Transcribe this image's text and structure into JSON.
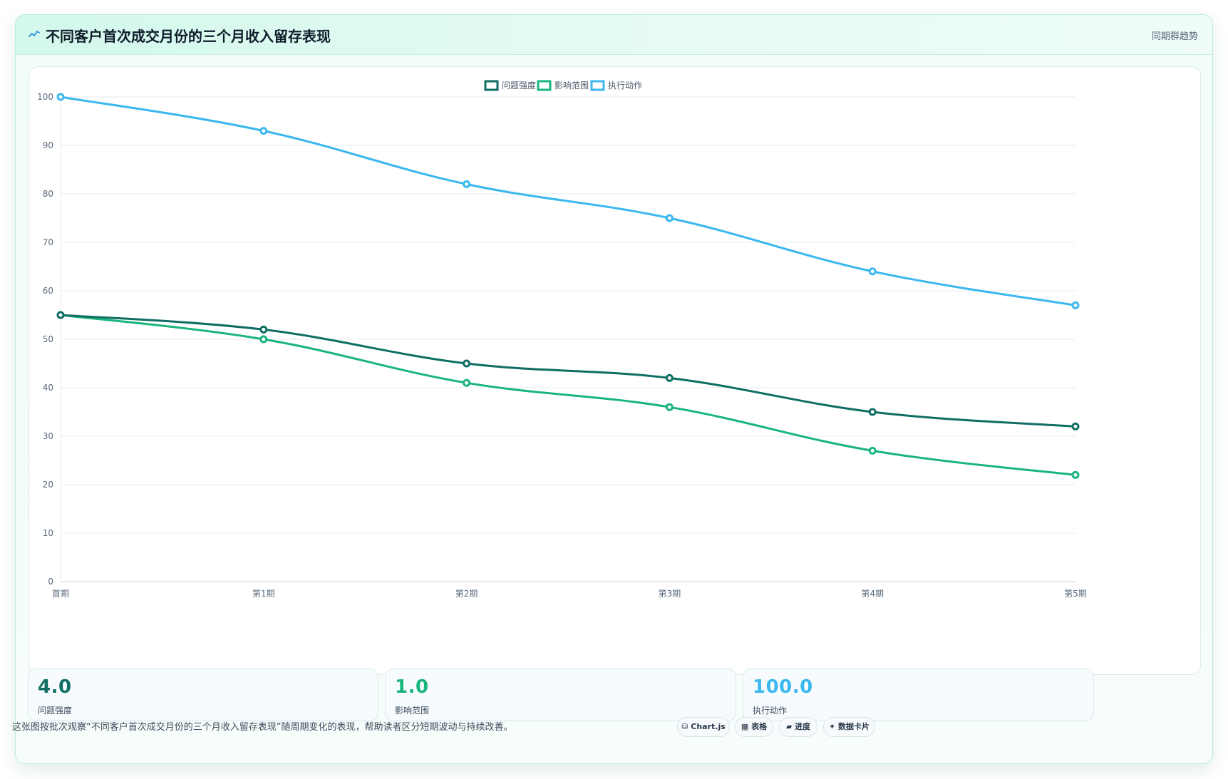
{
  "header": {
    "title": "不同客户首次成交月份的三个月收入留存表现",
    "badge": "同期群趋势",
    "icon": "line-chart-icon"
  },
  "chart_data": {
    "type": "line",
    "categories": [
      "首期",
      "第1期",
      "第2期",
      "第3期",
      "第4期",
      "第5期"
    ],
    "series": [
      {
        "name": "问题强度",
        "color": "#0f6e63",
        "values": [
          55,
          52,
          45,
          42,
          35,
          32
        ]
      },
      {
        "name": "影响范围",
        "color": "#19b57d",
        "values": [
          55,
          50,
          41,
          36,
          27,
          22
        ]
      },
      {
        "name": "执行动作",
        "color": "#3ab8ee",
        "values": [
          100,
          93,
          82,
          75,
          64,
          57
        ]
      }
    ],
    "ylim": [
      0,
      100
    ],
    "yticks": [
      0,
      10,
      20,
      30,
      40,
      50,
      60,
      70,
      80,
      90,
      100
    ],
    "grid": true,
    "legend_position": "top-center"
  },
  "stats": [
    {
      "value": "4.0",
      "label": "问题强度",
      "color": "#0f6e63"
    },
    {
      "value": "1.0",
      "label": "影响范围",
      "color": "#19b57d"
    },
    {
      "value": "100.0",
      "label": "执行动作",
      "color": "#3ab8ee"
    }
  ],
  "footnote": "这张图按批次观察“不同客户首次成交月份的三个月收入留存表现”随周期变化的表现，帮助读者区分短期波动与持续改善。",
  "chips": [
    {
      "label": "Chart.js",
      "icon": "database-icon"
    },
    {
      "label": "表格",
      "icon": "table-icon"
    },
    {
      "label": "进度",
      "icon": "progress-icon"
    },
    {
      "label": "数据卡片",
      "icon": "sparkle-icon"
    }
  ]
}
